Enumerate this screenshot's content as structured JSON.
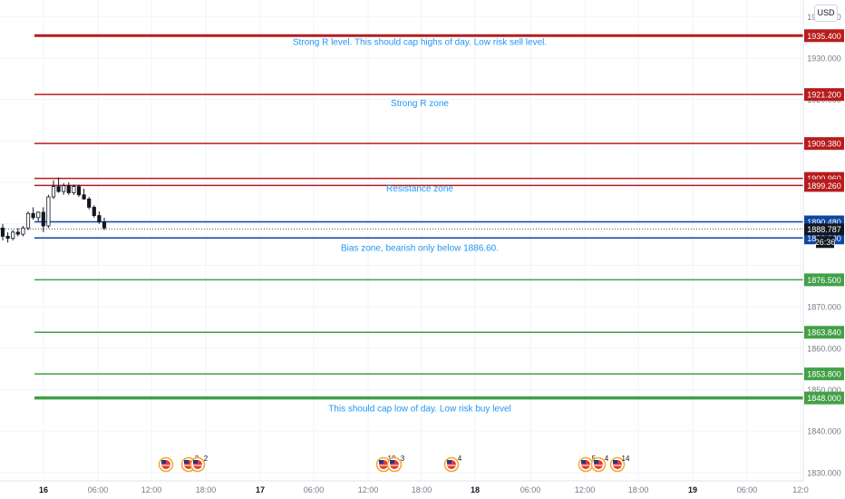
{
  "currency": "USD",
  "countdown": "26:36",
  "current_price": "1888.787",
  "price_axis": {
    "ticks": [
      "1940.000",
      "1930.000",
      "1920.000",
      "1900.000",
      "1870.000",
      "1860.000",
      "1850.000",
      "1840.000",
      "1830.000"
    ],
    "range": [
      1828,
      1944
    ]
  },
  "time_axis": {
    "ticks": [
      {
        "label": "16",
        "bold": true
      },
      {
        "label": "06:00"
      },
      {
        "label": "12:00"
      },
      {
        "label": "18:00"
      },
      {
        "label": "17",
        "bold": true
      },
      {
        "label": "06:00"
      },
      {
        "label": "12:00"
      },
      {
        "label": "18:00"
      },
      {
        "label": "18",
        "bold": true
      },
      {
        "label": "06:00"
      },
      {
        "label": "12:00"
      },
      {
        "label": "18:00"
      },
      {
        "label": "19",
        "bold": true
      },
      {
        "label": "06:00"
      },
      {
        "label": "12:0"
      }
    ]
  },
  "levels": [
    {
      "price": 1935.4,
      "label": "1935.400",
      "color": "#b71c1c",
      "kind": "resistance",
      "width": 3
    },
    {
      "price": 1921.2,
      "label": "1921.200",
      "color": "#b71c1c",
      "kind": "resistance",
      "width": 1.5
    },
    {
      "price": 1909.38,
      "label": "1909.380",
      "color": "#b71c1c",
      "kind": "resistance",
      "width": 1.5
    },
    {
      "price": 1900.96,
      "label": "1900.960",
      "color": "#b71c1c",
      "kind": "resistance",
      "width": 1.5
    },
    {
      "price": 1899.26,
      "label": "1899.260",
      "color": "#b71c1c",
      "kind": "resistance",
      "width": 1.5
    },
    {
      "price": 1890.48,
      "label": "1890.480",
      "color": "#0d47a1",
      "kind": "bias",
      "width": 1.5
    },
    {
      "price": 1886.6,
      "label": "1886.600",
      "color": "#0d47a1",
      "kind": "bias",
      "width": 1.5
    },
    {
      "price": 1876.5,
      "label": "1876.500",
      "color": "#43a047",
      "kind": "support",
      "width": 1.5
    },
    {
      "price": 1863.84,
      "label": "1863.840",
      "color": "#43a047",
      "kind": "support",
      "width": 1.5
    },
    {
      "price": 1853.8,
      "label": "1853.800",
      "color": "#43a047",
      "kind": "support",
      "width": 1.5
    },
    {
      "price": 1848.0,
      "label": "1848.000",
      "color": "#43a047",
      "kind": "support",
      "width": 3.5
    }
  ],
  "annotations": [
    {
      "text": "Strong R level. This should cap highs of day. Low risk sell level.",
      "price": 1933.9
    },
    {
      "text": "Strong R zone",
      "price": 1919.2
    },
    {
      "text": "Resistance zone",
      "price": 1898.6
    },
    {
      "text": "Bias zone, bearish only below 1886.60.",
      "price": 1884.3
    },
    {
      "text": "This should cap low of day. Low risk buy level",
      "price": 1845.5
    }
  ],
  "events": [
    {
      "count": ""
    },
    {
      "count": "3"
    },
    {
      "count": "2"
    },
    {
      "count": "10"
    },
    {
      "count": "3"
    },
    {
      "count": "4"
    },
    {
      "count": "5"
    },
    {
      "count": "4"
    },
    {
      "count": "14"
    }
  ],
  "candles": [
    {
      "o": 1889.0,
      "h": 1890.0,
      "l": 1886.0,
      "c": 1887.0
    },
    {
      "o": 1887.0,
      "h": 1888.0,
      "l": 1885.5,
      "c": 1886.5
    },
    {
      "o": 1886.5,
      "h": 1888.5,
      "l": 1886.0,
      "c": 1888.0
    },
    {
      "o": 1888.0,
      "h": 1889.0,
      "l": 1887.0,
      "c": 1887.5
    },
    {
      "o": 1887.5,
      "h": 1889.5,
      "l": 1887.0,
      "c": 1889.0
    },
    {
      "o": 1889.0,
      "h": 1893.0,
      "l": 1888.5,
      "c": 1892.5
    },
    {
      "o": 1892.5,
      "h": 1894.0,
      "l": 1891.0,
      "c": 1891.5
    },
    {
      "o": 1891.5,
      "h": 1893.0,
      "l": 1890.5,
      "c": 1892.8
    },
    {
      "o": 1892.8,
      "h": 1894.0,
      "l": 1888.0,
      "c": 1889.5
    },
    {
      "o": 1889.5,
      "h": 1897.0,
      "l": 1889.0,
      "c": 1896.5
    },
    {
      "o": 1896.5,
      "h": 1900.5,
      "l": 1896.0,
      "c": 1899.0
    },
    {
      "o": 1899.0,
      "h": 1901.2,
      "l": 1897.5,
      "c": 1897.8
    },
    {
      "o": 1897.8,
      "h": 1899.8,
      "l": 1897.0,
      "c": 1899.2
    },
    {
      "o": 1899.2,
      "h": 1900.0,
      "l": 1897.0,
      "c": 1897.5
    },
    {
      "o": 1897.5,
      "h": 1899.5,
      "l": 1897.0,
      "c": 1899.0
    },
    {
      "o": 1899.0,
      "h": 1899.5,
      "l": 1896.5,
      "c": 1897.0
    },
    {
      "o": 1897.0,
      "h": 1898.5,
      "l": 1895.8,
      "c": 1896.0
    },
    {
      "o": 1896.0,
      "h": 1896.5,
      "l": 1893.5,
      "c": 1894.0
    },
    {
      "o": 1894.0,
      "h": 1894.5,
      "l": 1891.5,
      "c": 1892.0
    },
    {
      "o": 1892.0,
      "h": 1893.0,
      "l": 1890.0,
      "c": 1890.5
    },
    {
      "o": 1890.5,
      "h": 1891.5,
      "l": 1888.5,
      "c": 1889.0
    }
  ]
}
